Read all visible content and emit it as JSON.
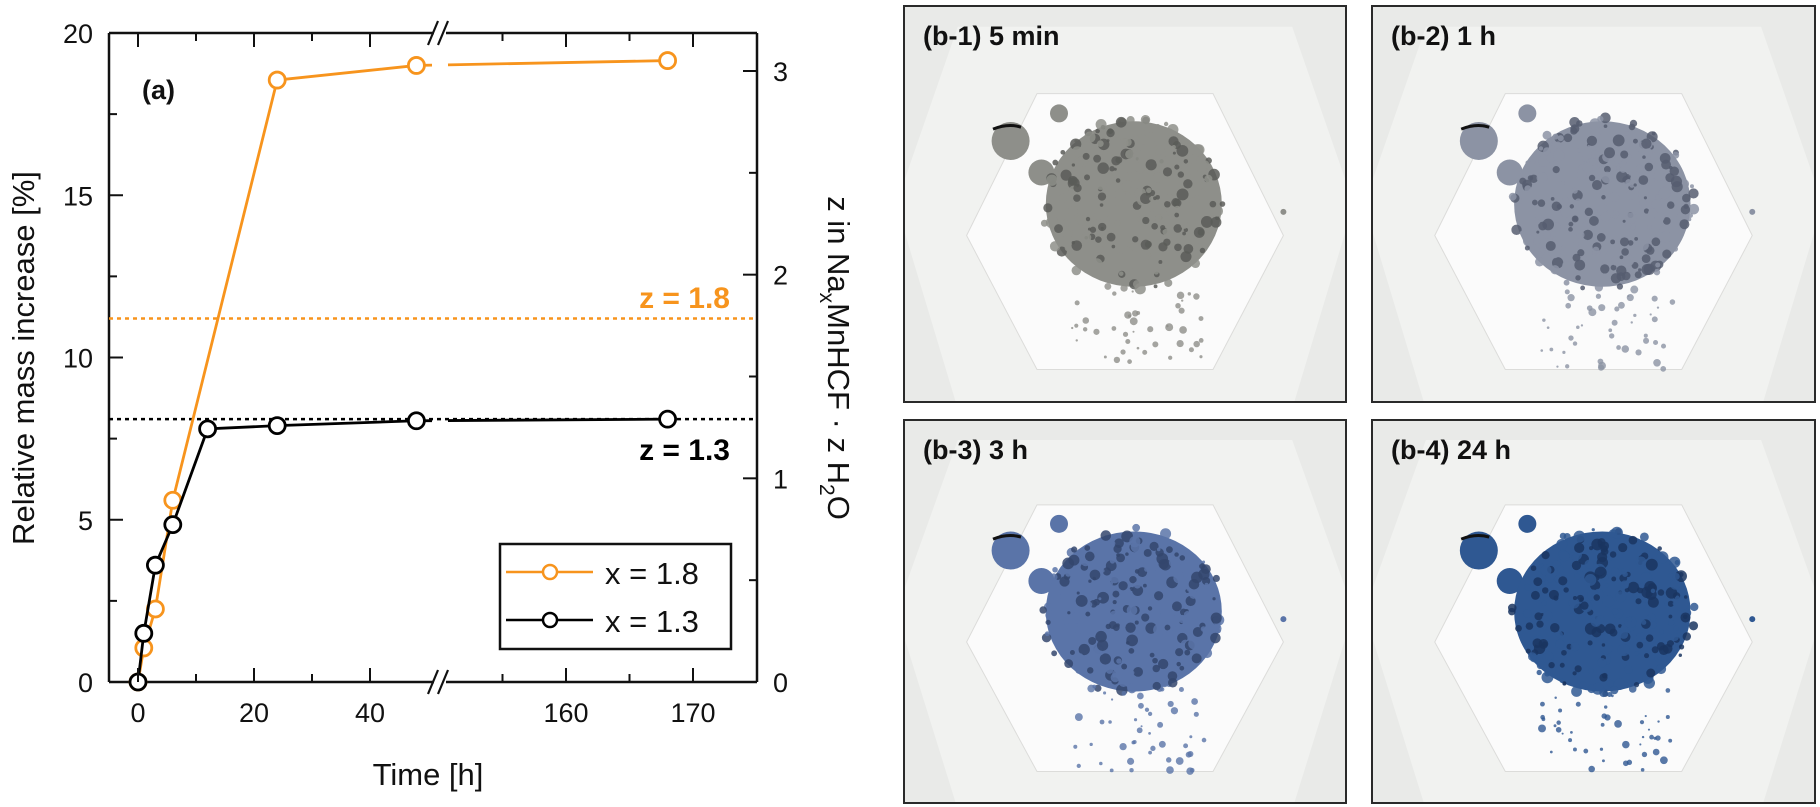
{
  "chart_data": {
    "type": "line",
    "panel_label": "(a)",
    "xlabel": "Time [h]",
    "ylabel": "Relative mass increase [%]",
    "y2label": "z in Na_xMnHCF · z H_2O",
    "ylim": [
      0,
      20
    ],
    "y2lim": [
      0,
      3
    ],
    "xaxis_break": {
      "segments": [
        [
          -4,
          49
        ],
        [
          150,
          175
        ]
      ],
      "break_marker": "//"
    },
    "xticks_labeled": [
      0,
      20,
      40,
      160,
      170
    ],
    "yticks_labeled": [
      0,
      5,
      10,
      15,
      20
    ],
    "y2ticks_labeled": [
      0,
      1,
      2,
      3
    ],
    "grid": false,
    "legend_position": "lower right",
    "series": [
      {
        "name": "x = 1.8",
        "color": "#f7941d",
        "marker": "open-circle",
        "x": [
          0,
          1,
          3,
          6,
          24,
          48,
          168
        ],
        "y": [
          0,
          1.05,
          2.25,
          5.6,
          18.55,
          19.0,
          19.15
        ]
      },
      {
        "name": "x = 1.3",
        "color": "#000000",
        "marker": "open-circle",
        "x": [
          0,
          1,
          3,
          6,
          12,
          24,
          48,
          168
        ],
        "y": [
          0,
          1.5,
          3.6,
          4.85,
          7.8,
          7.9,
          8.05,
          8.1
        ]
      }
    ],
    "reference_lines": [
      {
        "label": "z = 1.8",
        "y": 11.2,
        "color": "#f7941d",
        "style": "dotted"
      },
      {
        "label": "z = 1.3",
        "y": 8.1,
        "color": "#000000",
        "style": "dotted"
      }
    ]
  },
  "photos": {
    "panels": [
      {
        "label": "(b-1) 5 min",
        "powder_color": "#8e8f8a",
        "powder_dark": "#5b5c58"
      },
      {
        "label": "(b-2) 1 h",
        "powder_color": "#8c93a4",
        "powder_dark": "#565d70"
      },
      {
        "label": "(b-3) 3 h",
        "powder_color": "#5a74a8",
        "powder_dark": "#34466d"
      },
      {
        "label": "(b-4) 24 h",
        "powder_color": "#2f5892",
        "powder_dark": "#1a3560"
      }
    ]
  }
}
